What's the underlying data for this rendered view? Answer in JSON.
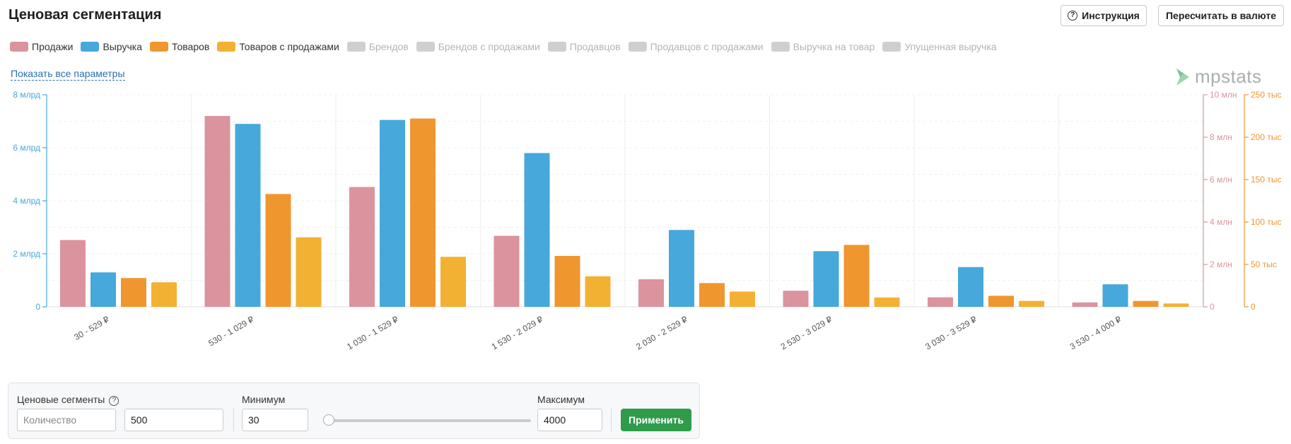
{
  "header": {
    "title": "Ценовая сегментация",
    "instruction_label": "Инструкция",
    "recalc_label": "Пересчитать в валюте"
  },
  "legend": [
    {
      "label": "Продажи",
      "color": "#db939e",
      "active": true
    },
    {
      "label": "Выручка",
      "color": "#46a8db",
      "active": true
    },
    {
      "label": "Товаров",
      "color": "#f0962f",
      "active": true
    },
    {
      "label": "Товаров с продажами",
      "color": "#f3b133",
      "active": true
    },
    {
      "label": "Брендов",
      "color": "#cfcfcf",
      "active": false
    },
    {
      "label": "Брендов с продажами",
      "color": "#cfcfcf",
      "active": false
    },
    {
      "label": "Продавцов",
      "color": "#cfcfcf",
      "active": false
    },
    {
      "label": "Продавцов с продажами",
      "color": "#cfcfcf",
      "active": false
    },
    {
      "label": "Выручка на товар",
      "color": "#cfcfcf",
      "active": false
    },
    {
      "label": "Упущенная выручка",
      "color": "#cfcfcf",
      "active": false
    }
  ],
  "show_all_label": "Показать все параметры",
  "logo_text": "mpstats",
  "chart_data": {
    "type": "bar",
    "categories": [
      "30 - 529 ₽",
      "530 - 1 029 ₽",
      "1 030 - 1 529 ₽",
      "1 530 - 2 029 ₽",
      "2 030 - 2 529 ₽",
      "2 530 - 3 029 ₽",
      "3 030 - 3 529 ₽",
      "3 530 - 4 000 ₽"
    ],
    "series": [
      {
        "name": "Продажи",
        "axis": "sales",
        "color": "#db939e",
        "values": [
          3150000,
          9000000,
          5650000,
          3350000,
          1300000,
          760000,
          450000,
          210000
        ]
      },
      {
        "name": "Выручка",
        "axis": "revenue",
        "color": "#46a8db",
        "values": [
          1300000000,
          6900000000,
          7050000000,
          5800000000,
          2900000000,
          2100000000,
          1500000000,
          850000000
        ]
      },
      {
        "name": "Товаров",
        "axis": "items",
        "color": "#f0962f",
        "values": [
          34000,
          133000,
          222000,
          60000,
          28000,
          73000,
          13000,
          7000
        ]
      },
      {
        "name": "Товаров с продажами",
        "axis": "items",
        "color": "#f3b133",
        "values": [
          29000,
          82000,
          59000,
          36000,
          18000,
          11000,
          7000,
          4000
        ]
      }
    ],
    "axes": {
      "revenue": {
        "position": "left",
        "min": 0,
        "max": 8000000000,
        "ticks": [
          "0",
          "2 млрд",
          "4 млрд",
          "6 млрд",
          "8 млрд"
        ],
        "color": "#46a8db"
      },
      "sales": {
        "position": "right",
        "min": 0,
        "max": 10000000,
        "ticks": [
          "0",
          "2 млн",
          "4 млн",
          "6 млн",
          "8 млн",
          "10 млн"
        ],
        "color": "#db939e"
      },
      "items": {
        "position": "right",
        "min": 0,
        "max": 250000,
        "ticks": [
          "0",
          "50 тыс",
          "100 тыс",
          "150 тыс",
          "200 тыс",
          "250 тыс"
        ],
        "color": "#f0962f"
      }
    },
    "grid": true,
    "legend_position": "top-left"
  },
  "segments": {
    "label": "Ценовые сегменты",
    "count_placeholder": "Количество",
    "step_value": "500",
    "min_label": "Минимум",
    "min_value": "30",
    "max_label": "Максимум",
    "max_value": "4000",
    "slider_position": 0,
    "apply_label": "Применить"
  }
}
